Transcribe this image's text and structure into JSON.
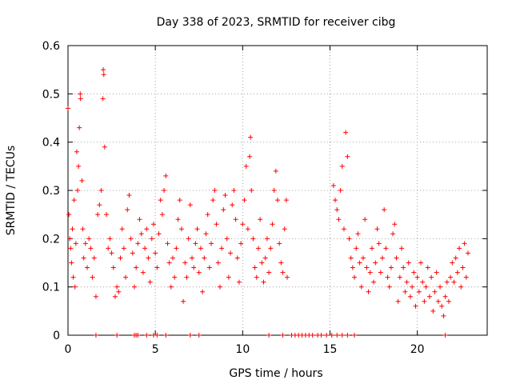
{
  "chart_data": {
    "type": "scatter",
    "title": "Day 338 of 2023, SRMTID for receiver cibg",
    "xlabel": "GPS time / hours",
    "ylabel": "SRMTID / TECUs",
    "xlim": [
      0,
      24
    ],
    "ylim": [
      0,
      0.6
    ],
    "xticks": [
      0,
      5,
      10,
      15,
      20
    ],
    "yticks": [
      0,
      0.1,
      0.2,
      0.3,
      0.4,
      0.5,
      0.6
    ],
    "xtick_labels": [
      "0",
      "5",
      "10",
      "15",
      "20"
    ],
    "ytick_labels": [
      "0",
      "0.1",
      "0.2",
      "0.3",
      "0.4",
      "0.5",
      "0.6"
    ],
    "grid": true,
    "marker": "+",
    "color": "#ff0000",
    "series": [
      {
        "name": "SRMTID",
        "points": [
          [
            0.0,
            0.47
          ],
          [
            0.05,
            0.25
          ],
          [
            0.1,
            0.2
          ],
          [
            0.15,
            0.18
          ],
          [
            0.2,
            0.15
          ],
          [
            0.25,
            0.22
          ],
          [
            0.3,
            0.12
          ],
          [
            0.35,
            0.28
          ],
          [
            0.4,
            0.1
          ],
          [
            0.45,
            0.19
          ],
          [
            0.5,
            0.38
          ],
          [
            0.55,
            0.3
          ],
          [
            0.6,
            0.35
          ],
          [
            0.65,
            0.43
          ],
          [
            0.7,
            0.5
          ],
          [
            0.72,
            0.49
          ],
          [
            0.8,
            0.32
          ],
          [
            0.85,
            0.22
          ],
          [
            0.9,
            0.16
          ],
          [
            1.0,
            0.19
          ],
          [
            1.1,
            0.14
          ],
          [
            1.2,
            0.2
          ],
          [
            1.3,
            0.18
          ],
          [
            1.4,
            0.12
          ],
          [
            1.5,
            0.16
          ],
          [
            1.6,
            0.08
          ],
          [
            1.7,
            0.25
          ],
          [
            1.8,
            0.27
          ],
          [
            1.9,
            0.3
          ],
          [
            2.0,
            0.49
          ],
          [
            2.02,
            0.55
          ],
          [
            2.05,
            0.54
          ],
          [
            2.1,
            0.39
          ],
          [
            2.2,
            0.25
          ],
          [
            2.3,
            0.18
          ],
          [
            2.4,
            0.2
          ],
          [
            2.5,
            0.17
          ],
          [
            2.6,
            0.14
          ],
          [
            2.7,
            0.08
          ],
          [
            2.8,
            0.1
          ],
          [
            2.9,
            0.09
          ],
          [
            3.0,
            0.16
          ],
          [
            3.1,
            0.22
          ],
          [
            3.2,
            0.18
          ],
          [
            3.3,
            0.12
          ],
          [
            3.4,
            0.26
          ],
          [
            3.5,
            0.29
          ],
          [
            3.6,
            0.2
          ],
          [
            3.7,
            0.17
          ],
          [
            3.8,
            0.1
          ],
          [
            3.9,
            0.14
          ],
          [
            4.0,
            0.19
          ],
          [
            4.1,
            0.24
          ],
          [
            4.2,
            0.21
          ],
          [
            4.3,
            0.13
          ],
          [
            4.4,
            0.18
          ],
          [
            4.5,
            0.22
          ],
          [
            4.6,
            0.16
          ],
          [
            4.7,
            0.11
          ],
          [
            4.8,
            0.2
          ],
          [
            4.9,
            0.23
          ],
          [
            5.0,
            0.17
          ],
          [
            5.1,
            0.14
          ],
          [
            5.2,
            0.21
          ],
          [
            5.3,
            0.28
          ],
          [
            5.4,
            0.25
          ],
          [
            5.5,
            0.3
          ],
          [
            5.6,
            0.33
          ],
          [
            5.7,
            0.19
          ],
          [
            5.8,
            0.15
          ],
          [
            5.9,
            0.1
          ],
          [
            6.0,
            0.16
          ],
          [
            6.1,
            0.12
          ],
          [
            6.2,
            0.18
          ],
          [
            6.3,
            0.24
          ],
          [
            6.4,
            0.28
          ],
          [
            6.5,
            0.22
          ],
          [
            6.6,
            0.07
          ],
          [
            6.7,
            0.15
          ],
          [
            6.8,
            0.12
          ],
          [
            6.9,
            0.2
          ],
          [
            7.0,
            0.27
          ],
          [
            7.1,
            0.16
          ],
          [
            7.2,
            0.14
          ],
          [
            7.3,
            0.19
          ],
          [
            7.4,
            0.22
          ],
          [
            7.5,
            0.13
          ],
          [
            7.6,
            0.18
          ],
          [
            7.7,
            0.09
          ],
          [
            7.8,
            0.16
          ],
          [
            7.9,
            0.21
          ],
          [
            8.0,
            0.25
          ],
          [
            8.1,
            0.14
          ],
          [
            8.2,
            0.19
          ],
          [
            8.3,
            0.28
          ],
          [
            8.4,
            0.3
          ],
          [
            8.5,
            0.23
          ],
          [
            8.6,
            0.15
          ],
          [
            8.7,
            0.1
          ],
          [
            8.8,
            0.18
          ],
          [
            8.9,
            0.26
          ],
          [
            9.0,
            0.29
          ],
          [
            9.1,
            0.2
          ],
          [
            9.2,
            0.12
          ],
          [
            9.3,
            0.17
          ],
          [
            9.4,
            0.27
          ],
          [
            9.5,
            0.3
          ],
          [
            9.6,
            0.24
          ],
          [
            9.7,
            0.16
          ],
          [
            9.8,
            0.11
          ],
          [
            9.9,
            0.19
          ],
          [
            10.0,
            0.23
          ],
          [
            10.1,
            0.28
          ],
          [
            10.2,
            0.35
          ],
          [
            10.3,
            0.22
          ],
          [
            10.4,
            0.37
          ],
          [
            10.45,
            0.41
          ],
          [
            10.5,
            0.3
          ],
          [
            10.6,
            0.2
          ],
          [
            10.7,
            0.14
          ],
          [
            10.8,
            0.12
          ],
          [
            10.9,
            0.18
          ],
          [
            11.0,
            0.24
          ],
          [
            11.1,
            0.15
          ],
          [
            11.2,
            0.11
          ],
          [
            11.3,
            0.16
          ],
          [
            11.4,
            0.2
          ],
          [
            11.5,
            0.13
          ],
          [
            11.6,
            0.18
          ],
          [
            11.7,
            0.23
          ],
          [
            11.8,
            0.3
          ],
          [
            11.9,
            0.34
          ],
          [
            12.0,
            0.28
          ],
          [
            12.1,
            0.19
          ],
          [
            12.2,
            0.15
          ],
          [
            12.3,
            0.13
          ],
          [
            12.4,
            0.22
          ],
          [
            12.5,
            0.28
          ],
          [
            12.55,
            0.12
          ],
          [
            15.2,
            0.31
          ],
          [
            15.3,
            0.28
          ],
          [
            15.4,
            0.26
          ],
          [
            15.5,
            0.24
          ],
          [
            15.6,
            0.3
          ],
          [
            15.7,
            0.35
          ],
          [
            15.8,
            0.22
          ],
          [
            15.9,
            0.42
          ],
          [
            16.0,
            0.37
          ],
          [
            16.1,
            0.2
          ],
          [
            16.2,
            0.16
          ],
          [
            16.3,
            0.14
          ],
          [
            16.4,
            0.12
          ],
          [
            16.5,
            0.18
          ],
          [
            16.6,
            0.21
          ],
          [
            16.7,
            0.15
          ],
          [
            16.8,
            0.1
          ],
          [
            16.9,
            0.16
          ],
          [
            17.0,
            0.24
          ],
          [
            17.1,
            0.14
          ],
          [
            17.2,
            0.09
          ],
          [
            17.3,
            0.13
          ],
          [
            17.4,
            0.18
          ],
          [
            17.5,
            0.11
          ],
          [
            17.6,
            0.15
          ],
          [
            17.7,
            0.22
          ],
          [
            17.8,
            0.19
          ],
          [
            17.9,
            0.13
          ],
          [
            18.0,
            0.16
          ],
          [
            18.1,
            0.26
          ],
          [
            18.2,
            0.18
          ],
          [
            18.3,
            0.12
          ],
          [
            18.4,
            0.1
          ],
          [
            18.5,
            0.14
          ],
          [
            18.6,
            0.21
          ],
          [
            18.7,
            0.23
          ],
          [
            18.8,
            0.16
          ],
          [
            18.9,
            0.07
          ],
          [
            19.0,
            0.12
          ],
          [
            19.1,
            0.18
          ],
          [
            19.2,
            0.14
          ],
          [
            19.3,
            0.09
          ],
          [
            19.4,
            0.11
          ],
          [
            19.5,
            0.15
          ],
          [
            19.6,
            0.08
          ],
          [
            19.7,
            0.1
          ],
          [
            19.8,
            0.13
          ],
          [
            19.9,
            0.06
          ],
          [
            20.0,
            0.12
          ],
          [
            20.1,
            0.09
          ],
          [
            20.2,
            0.15
          ],
          [
            20.3,
            0.11
          ],
          [
            20.4,
            0.07
          ],
          [
            20.5,
            0.1
          ],
          [
            20.6,
            0.14
          ],
          [
            20.7,
            0.08
          ],
          [
            20.8,
            0.12
          ],
          [
            20.9,
            0.05
          ],
          [
            21.0,
            0.09
          ],
          [
            21.1,
            0.13
          ],
          [
            21.2,
            0.07
          ],
          [
            21.3,
            0.1
          ],
          [
            21.4,
            0.06
          ],
          [
            21.5,
            0.04
          ],
          [
            21.6,
            0.08
          ],
          [
            21.7,
            0.11
          ],
          [
            21.8,
            0.07
          ],
          [
            21.9,
            0.12
          ],
          [
            22.0,
            0.15
          ],
          [
            22.1,
            0.11
          ],
          [
            22.2,
            0.16
          ],
          [
            22.3,
            0.13
          ],
          [
            22.4,
            0.18
          ],
          [
            22.5,
            0.1
          ],
          [
            22.6,
            0.14
          ],
          [
            22.7,
            0.19
          ],
          [
            22.8,
            0.12
          ],
          [
            22.9,
            0.17
          ],
          [
            1.6,
            0.0
          ],
          [
            2.8,
            0.0
          ],
          [
            3.8,
            0.0
          ],
          [
            3.9,
            0.0
          ],
          [
            4.0,
            0.0
          ],
          [
            4.5,
            0.0
          ],
          [
            4.9,
            0.0
          ],
          [
            5.1,
            0.0
          ],
          [
            5.6,
            0.0
          ],
          [
            7.0,
            0.0
          ],
          [
            7.5,
            0.0
          ],
          [
            11.5,
            0.0
          ],
          [
            12.3,
            0.0
          ],
          [
            12.8,
            0.0
          ],
          [
            13.0,
            0.0
          ],
          [
            13.2,
            0.0
          ],
          [
            13.4,
            0.0
          ],
          [
            13.6,
            0.0
          ],
          [
            13.8,
            0.0
          ],
          [
            14.0,
            0.0
          ],
          [
            14.3,
            0.0
          ],
          [
            14.5,
            0.0
          ],
          [
            14.8,
            0.0
          ],
          [
            15.1,
            0.0
          ],
          [
            15.4,
            0.0
          ],
          [
            15.7,
            0.0
          ],
          [
            16.0,
            0.0
          ],
          [
            16.4,
            0.0
          ],
          [
            21.6,
            0.0
          ]
        ]
      }
    ]
  }
}
